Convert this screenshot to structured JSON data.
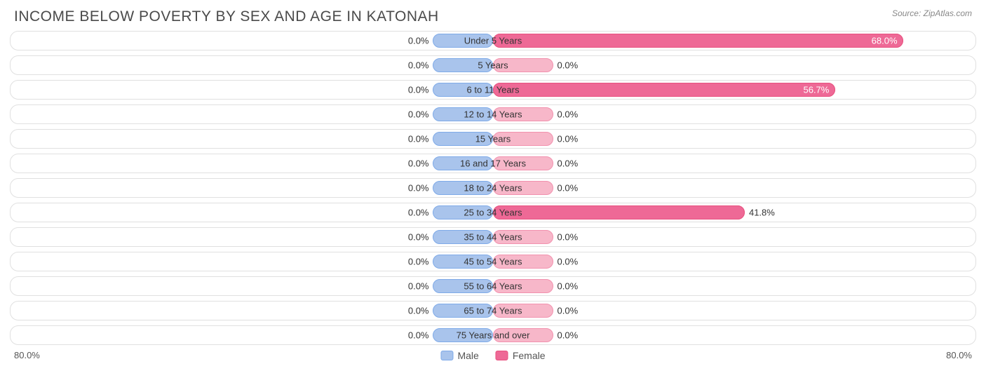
{
  "title": "INCOME BELOW POVERTY BY SEX AND AGE IN KATONAH",
  "source": "Source: ZipAtlas.com",
  "axis_max": 80.0,
  "axis_label_left": "80.0%",
  "axis_label_right": "80.0%",
  "base_bar_pct": 10.0,
  "colors": {
    "male_base": "#a9c4ec",
    "male_fill": "#74a4e8",
    "female_base": "#f7b7c9",
    "female_fill": "#ee6996",
    "row_border": "#e0e0e0",
    "text": "#333333",
    "title_text": "#4a4a4a",
    "source_text": "#888888"
  },
  "legend": {
    "male": "Male",
    "female": "Female"
  },
  "rows": [
    {
      "label": "Under 5 Years",
      "male": 0.0,
      "female": 68.0,
      "female_inside": true
    },
    {
      "label": "5 Years",
      "male": 0.0,
      "female": 0.0
    },
    {
      "label": "6 to 11 Years",
      "male": 0.0,
      "female": 56.7,
      "female_inside": true
    },
    {
      "label": "12 to 14 Years",
      "male": 0.0,
      "female": 0.0
    },
    {
      "label": "15 Years",
      "male": 0.0,
      "female": 0.0
    },
    {
      "label": "16 and 17 Years",
      "male": 0.0,
      "female": 0.0
    },
    {
      "label": "18 to 24 Years",
      "male": 0.0,
      "female": 0.0
    },
    {
      "label": "25 to 34 Years",
      "male": 0.0,
      "female": 41.8
    },
    {
      "label": "35 to 44 Years",
      "male": 0.0,
      "female": 0.0
    },
    {
      "label": "45 to 54 Years",
      "male": 0.0,
      "female": 0.0
    },
    {
      "label": "55 to 64 Years",
      "male": 0.0,
      "female": 0.0
    },
    {
      "label": "65 to 74 Years",
      "male": 0.0,
      "female": 0.0
    },
    {
      "label": "75 Years and over",
      "male": 0.0,
      "female": 0.0
    }
  ]
}
